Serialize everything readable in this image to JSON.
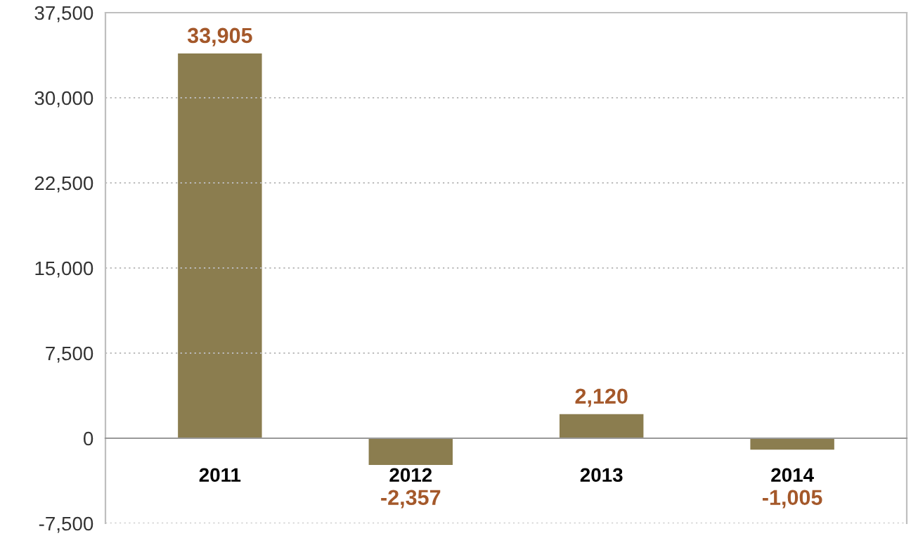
{
  "chart_data": {
    "type": "bar",
    "categories": [
      "2011",
      "2012",
      "2013",
      "2014"
    ],
    "values": [
      33905,
      -2357,
      2120,
      -1005
    ],
    "color": "#8b7d4f",
    "ylim": [
      -7500,
      37500
    ],
    "yticks": [
      {
        "value": -7500,
        "label": "-7,500"
      },
      {
        "value": 0,
        "label": "0"
      },
      {
        "value": 7500,
        "label": "7,500"
      },
      {
        "value": 15000,
        "label": "15,000"
      },
      {
        "value": 22500,
        "label": "22,500"
      },
      {
        "value": 30000,
        "label": "30,000"
      },
      {
        "value": 37500,
        "label": "37,500"
      }
    ],
    "grid": "y",
    "value_labels": [
      "33,905",
      "-2,357",
      "2,120",
      "-1,005"
    ]
  }
}
